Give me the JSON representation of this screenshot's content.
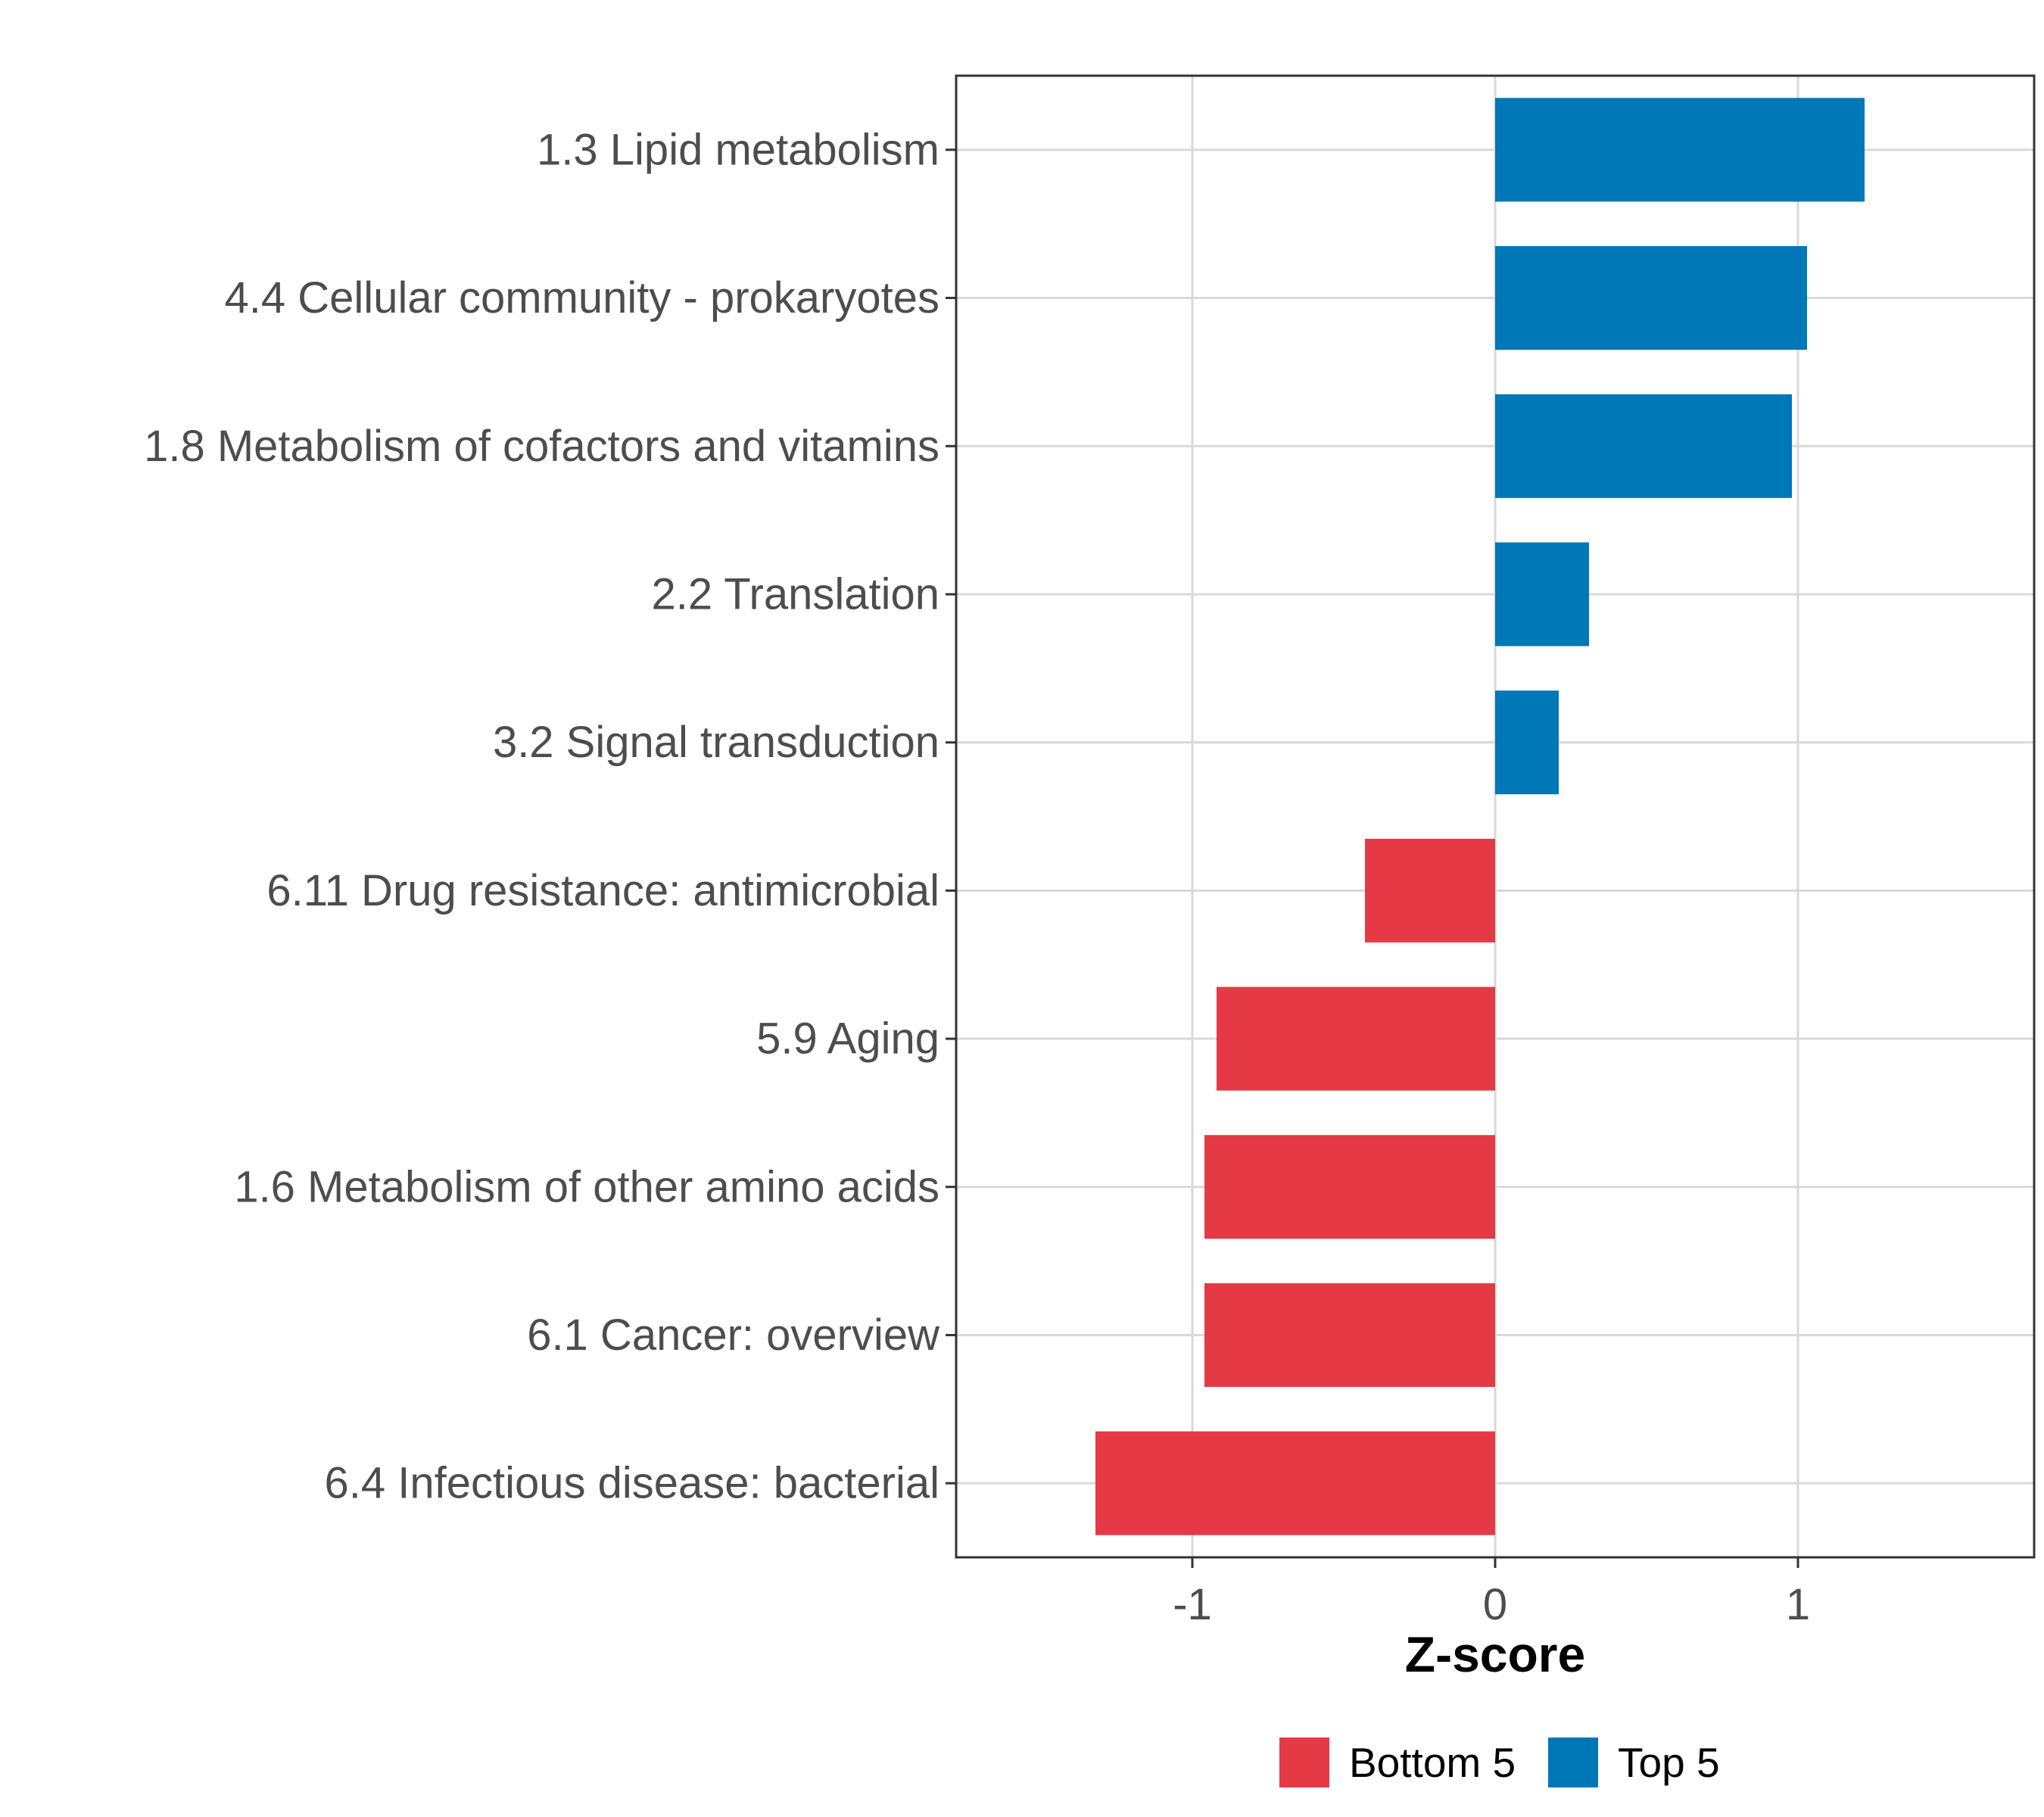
{
  "chart_data": {
    "type": "bar",
    "orientation": "horizontal",
    "title": "",
    "xlabel": "Z-score",
    "ylabel": "",
    "xlim": [
      -1.78,
      1.78
    ],
    "xticks": [
      -1,
      0,
      1
    ],
    "xtick_labels": [
      "-1",
      "0",
      "1"
    ],
    "grid": true,
    "legend_position": "bottom",
    "categories": [
      "1.3 Lipid metabolism",
      "4.4 Cellular community - prokaryotes",
      "1.8 Metabolism of cofactors and vitamins",
      "2.2 Translation",
      "3.2 Signal transduction",
      "6.11 Drug resistance: antimicrobial",
      "5.9 Aging",
      "1.6 Metabolism of other amino acids",
      "6.1 Cancer: overview",
      "6.4 Infectious disease: bacterial"
    ],
    "values": [
      1.22,
      1.03,
      0.98,
      0.31,
      0.21,
      -0.43,
      -0.92,
      -0.96,
      -0.96,
      -1.32
    ],
    "groups": [
      "Top 5",
      "Top 5",
      "Top 5",
      "Top 5",
      "Top 5",
      "Bottom 5",
      "Bottom 5",
      "Bottom 5",
      "Bottom 5",
      "Bottom 5"
    ],
    "legend": [
      {
        "name": "Bottom 5",
        "color": "#e63946"
      },
      {
        "name": "Top 5",
        "color": "#0077b6"
      }
    ]
  }
}
